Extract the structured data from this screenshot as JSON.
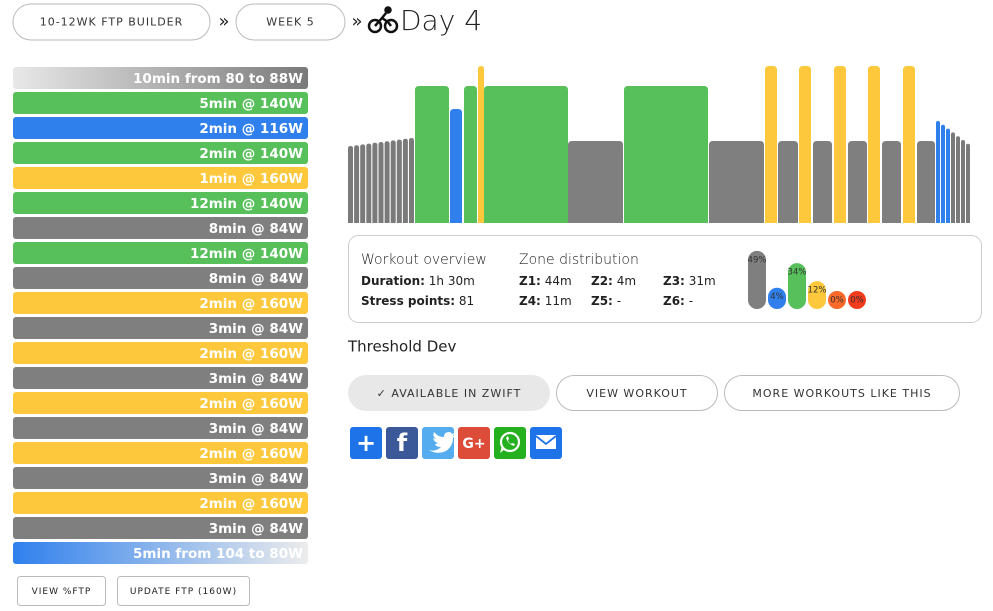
{
  "breadcrumb": {
    "items": [
      "10-12WK FTP BUILDER",
      "WEEK 5"
    ],
    "separator": "»",
    "title": "Day 4"
  },
  "intervals": [
    {
      "label": "10min from 80 to 88W",
      "color": [
        "#e8e8e8",
        "#7a7a7a"
      ]
    },
    {
      "label": "5min @ 140W",
      "color": "#57c05a"
    },
    {
      "label": "2min @ 116W",
      "color": "#2f80ed"
    },
    {
      "label": "2min @ 140W",
      "color": "#57c05a"
    },
    {
      "label": "1min @ 160W",
      "color": "#fdc83c"
    },
    {
      "label": "12min @ 140W",
      "color": "#57c05a"
    },
    {
      "label": "8min @ 84W",
      "color": "#7f7f7f"
    },
    {
      "label": "12min @ 140W",
      "color": "#57c05a"
    },
    {
      "label": "8min @ 84W",
      "color": "#7f7f7f"
    },
    {
      "label": "2min @ 160W",
      "color": "#fdc83c"
    },
    {
      "label": "3min @ 84W",
      "color": "#7f7f7f"
    },
    {
      "label": "2min @ 160W",
      "color": "#fdc83c"
    },
    {
      "label": "3min @ 84W",
      "color": "#7f7f7f"
    },
    {
      "label": "2min @ 160W",
      "color": "#fdc83c"
    },
    {
      "label": "3min @ 84W",
      "color": "#7f7f7f"
    },
    {
      "label": "2min @ 160W",
      "color": "#fdc83c"
    },
    {
      "label": "3min @ 84W",
      "color": "#7f7f7f"
    },
    {
      "label": "2min @ 160W",
      "color": "#fdc83c"
    },
    {
      "label": "3min @ 84W",
      "color": "#7f7f7f"
    },
    {
      "label": "5min from 104 to 80W",
      "color": [
        "#2f80ed",
        "#ececec"
      ]
    }
  ],
  "list_buttons": [
    "VIEW %FTP",
    "UPDATE FTP (160W)"
  ],
  "overview": {
    "title": "Workout overview",
    "duration_label": "Duration:",
    "duration": "1h 30m",
    "stress_label": "Stress points:",
    "stress": 81
  },
  "zones": {
    "title": "Zone distribution",
    "items": [
      {
        "label": "Z1:",
        "time": "44m"
      },
      {
        "label": "Z2:",
        "time": "4m"
      },
      {
        "label": "Z3:",
        "time": "31m"
      },
      {
        "label": "Z4:",
        "time": "11m"
      },
      {
        "label": "Z5:",
        "time": "-"
      },
      {
        "label": "Z6:",
        "time": "-"
      }
    ],
    "chart": [
      {
        "value": 49,
        "label": "49%",
        "color": "#7f7f7f"
      },
      {
        "value": 4,
        "label": "4%",
        "color": "#2f80ed"
      },
      {
        "value": 34,
        "label": "34%",
        "color": "#57c05a"
      },
      {
        "value": 12,
        "label": "12%",
        "color": "#fdc83c"
      },
      {
        "value": 0,
        "label": "0%",
        "color": "#fa6a2a"
      },
      {
        "value": 0,
        "label": "0%",
        "color": "#f23a1c"
      }
    ]
  },
  "workout_name": "Threshold Dev",
  "buttons": [
    "✓ AVAILABLE IN ZWIFT",
    "VIEW WORKOUT",
    "MORE WORKOUTS LIKE THIS"
  ],
  "share": {
    "icons": [
      "+",
      "f",
      null,
      "G+",
      null,
      null
    ],
    "colors": [
      "#1e73e8",
      "#3b5998",
      "#55acee",
      "#dd4b39",
      "#25b01f",
      "#1e73e8"
    ]
  }
}
